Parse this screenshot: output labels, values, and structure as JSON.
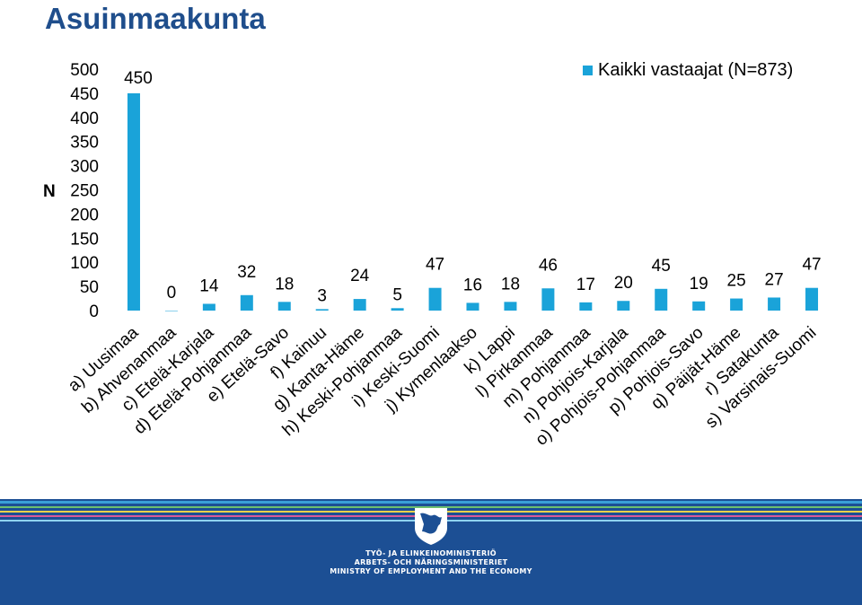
{
  "page": {
    "title": "Asuinmaakunta"
  },
  "colors": {
    "bar": "#1aa3d9",
    "title": "#1f4e8c",
    "footer": "#1c4f94"
  },
  "chart_data": {
    "type": "bar",
    "title": "",
    "xlabel": "",
    "ylabel": "N",
    "ylim": [
      0,
      500
    ],
    "yticks": [
      "0",
      "50",
      "100",
      "150",
      "200",
      "250",
      "300",
      "350",
      "400",
      "450",
      "500"
    ],
    "grid": false,
    "legend_position": "top-right",
    "categories": [
      "a) Uusimaa",
      "b) Ahvenanmaa",
      "c) Etelä-Karjala",
      "d) Etelä-Pohjanmaa",
      "e) Etelä-Savo",
      "f) Kainuu",
      "g) Kanta-Häme",
      "h) Keski-Pohjanmaa",
      "i) Keski-Suomi",
      "j) Kymenlaakso",
      "k) Lappi",
      "l) Pirkanmaa",
      "m) Pohjanmaa",
      "n) Pohjois-Karjala",
      "o) Pohjois-Pohjanmaa",
      "p) Pohjois-Savo",
      "q) Päijät-Häme",
      "r) Satakunta",
      "s) Varsinais-Suomi"
    ],
    "series": [
      {
        "name": "Kaikki vastaajat (N=873)",
        "values": [
          450,
          0,
          14,
          32,
          18,
          3,
          24,
          5,
          47,
          16,
          18,
          46,
          17,
          20,
          45,
          19,
          25,
          27,
          47
        ]
      }
    ]
  },
  "footer": {
    "line1": "TYÖ- JA ELINKEINOMINISTERIÖ",
    "line2": "ARBETS- OCH NÄRINGSMINISTERIET",
    "line3": "MINISTRY OF EMPLOYMENT AND THE ECONOMY",
    "logo": "finnish-lion-coat-of-arms-icon"
  }
}
